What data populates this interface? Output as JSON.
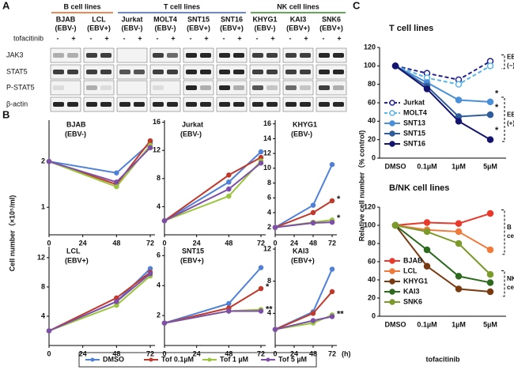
{
  "panel_labels": [
    "A",
    "B",
    "C"
  ],
  "blot": {
    "treatment_label": "tofacitinib",
    "treatment_marks": [
      "-",
      "+"
    ],
    "rows": [
      "JAK3",
      "STAT5",
      "P-STAT5",
      "β-actin"
    ],
    "groups": [
      {
        "name": "B cell lines",
        "color": "#e8601c",
        "lines": [
          {
            "name": "BJAB",
            "ebv": "(EBV-)"
          },
          {
            "name": "LCL",
            "ebv": "(EBV+)"
          }
        ]
      },
      {
        "name": "T cell lines",
        "color": "#3a5fcd",
        "lines": [
          {
            "name": "Jurkat",
            "ebv": "(EBV-)"
          },
          {
            "name": "MOLT4",
            "ebv": "(EBV-)"
          },
          {
            "name": "SNT15",
            "ebv": "(EBV+)"
          },
          {
            "name": "SNT16",
            "ebv": "(EBV+)"
          }
        ]
      },
      {
        "name": "NK cell lines",
        "color": "#2e8b22",
        "lines": [
          {
            "name": "KHYG1",
            "ebv": "(EBV-)"
          },
          {
            "name": "KAI3",
            "ebv": "(EBV+)"
          },
          {
            "name": "SNK6",
            "ebv": "(EBV+)"
          }
        ]
      }
    ]
  },
  "panel_b": {
    "y_label": "Cell number（×10⁵/ml)",
    "x_unit": "(h)"
  },
  "panel_c": {
    "y_label": "Relative cell number（% control)",
    "x_label": "tofacitinib"
  },
  "chart_data": [
    {
      "type": "line",
      "title": "BJAB",
      "subtitle": "(EBV-)",
      "title_color": "#e8601c",
      "x": [
        0,
        48,
        72
      ],
      "xlim": [
        0,
        72
      ],
      "xticks": [
        0,
        24,
        48,
        72
      ],
      "ylim": [
        0.4,
        2.9
      ],
      "yticks": [
        1,
        2
      ],
      "series": [
        {
          "name": "DMSO",
          "color": "#4f81d9",
          "values": [
            2,
            1.75,
            2.4
          ]
        },
        {
          "name": "Tof 0.1µM",
          "color": "#c0392b",
          "values": [
            2,
            1.5,
            2.45
          ]
        },
        {
          "name": "Tof 1 µM",
          "color": "#9bc53d",
          "values": [
            2,
            1.45,
            2.35
          ]
        },
        {
          "name": "Tof 5 µM",
          "color": "#7d4fa8",
          "values": [
            2,
            1.55,
            2.3
          ]
        }
      ]
    },
    {
      "type": "line",
      "title": "Jurkat",
      "subtitle": "(EBV-)",
      "title_color": "#3a5fcd",
      "x": [
        0,
        48,
        72
      ],
      "xlim": [
        0,
        72
      ],
      "xticks": [
        0,
        24,
        48,
        72
      ],
      "ylim": [
        0,
        16.3
      ],
      "yticks": [
        4,
        8,
        12,
        16
      ],
      "series": [
        {
          "color": "#4f81d9",
          "values": [
            2,
            7.5,
            11.8
          ]
        },
        {
          "color": "#c0392b",
          "values": [
            2,
            8.5,
            11
          ]
        },
        {
          "color": "#9bc53d",
          "values": [
            2,
            5.5,
            10.5
          ]
        },
        {
          "color": "#7d4fa8",
          "values": [
            2,
            6.5,
            10.2
          ]
        }
      ]
    },
    {
      "type": "line",
      "title": "KHYG1",
      "subtitle": "(EBV-)",
      "title_color": "#2e8b22",
      "x": [
        0,
        48,
        72
      ],
      "xlim": [
        0,
        72
      ],
      "xticks": [
        0,
        24,
        48,
        72
      ],
      "ylim": [
        1,
        16.5
      ],
      "yticks": [
        2,
        4,
        6,
        8,
        10,
        12,
        14,
        16
      ],
      "series": [
        {
          "color": "#4f81d9",
          "values": [
            2,
            5,
            10.5
          ]
        },
        {
          "color": "#c0392b",
          "values": [
            2,
            4,
            5.6
          ]
        },
        {
          "color": "#9bc53d",
          "values": [
            2,
            2.7,
            3
          ]
        },
        {
          "color": "#7d4fa8",
          "values": [
            2,
            2.6,
            2.7
          ]
        }
      ],
      "annotations": [
        {
          "text": "*",
          "x": 72,
          "y": 5.6
        },
        {
          "text": "*",
          "x": 72,
          "y": 3
        }
      ]
    },
    {
      "type": "line",
      "title": "LCL",
      "subtitle": "(EBV+)",
      "title_color": "#e8601c",
      "x": [
        0,
        48,
        72
      ],
      "xlim": [
        0,
        72
      ],
      "xticks": [
        0,
        24,
        48,
        72
      ],
      "ylim": [
        0,
        13.5
      ],
      "yticks": [
        4,
        8,
        12
      ],
      "series": [
        {
          "color": "#4f81d9",
          "values": [
            2,
            6,
            10.5
          ]
        },
        {
          "color": "#c0392b",
          "values": [
            2,
            6.5,
            10
          ]
        },
        {
          "color": "#9bc53d",
          "values": [
            2,
            5.5,
            9.5
          ]
        },
        {
          "color": "#7d4fa8",
          "values": [
            2,
            6,
            9.8
          ]
        }
      ]
    },
    {
      "type": "line",
      "title": "SNT15",
      "subtitle": "(EBV+)",
      "title_color": "#3a5fcd",
      "x": [
        0,
        48,
        72
      ],
      "xlim": [
        0,
        72
      ],
      "xticks": [
        0,
        24,
        48,
        72
      ],
      "ylim": [
        0,
        6.6
      ],
      "yticks": [
        2,
        4,
        6
      ],
      "series": [
        {
          "color": "#4f81d9",
          "values": [
            1.5,
            2.8,
            5.2
          ]
        },
        {
          "color": "#c0392b",
          "values": [
            1.5,
            2.5,
            3.8
          ]
        },
        {
          "color": "#9bc53d",
          "values": [
            1.5,
            2.3,
            2.4
          ]
        },
        {
          "color": "#7d4fa8",
          "values": [
            1.5,
            2.3,
            2.3
          ]
        }
      ],
      "annotations": [
        {
          "text": "*",
          "x": 72,
          "y": 3.8
        },
        {
          "text": "**",
          "x": 72,
          "y": 2.3
        }
      ]
    },
    {
      "type": "line",
      "title": "KAI3",
      "subtitle": "(EBV+)",
      "title_color": "#2e8b22",
      "x": [
        0,
        48,
        72
      ],
      "xlim": [
        0,
        72
      ],
      "xticks": [
        0,
        24,
        48,
        72
      ],
      "ylim": [
        0,
        12.3
      ],
      "yticks": [
        4,
        8,
        12
      ],
      "series": [
        {
          "color": "#4f81d9",
          "values": [
            2,
            4.2,
            9.5
          ]
        },
        {
          "color": "#c0392b",
          "values": [
            2,
            4,
            6.7
          ]
        },
        {
          "color": "#9bc53d",
          "values": [
            2,
            2.8,
            3.8
          ]
        },
        {
          "color": "#7d4fa8",
          "values": [
            2,
            3.1,
            3.6
          ]
        }
      ],
      "annotations": [
        {
          "text": "**",
          "x": 72,
          "y": 3.7
        }
      ]
    },
    {
      "type": "line",
      "title": "T cell lines",
      "categories": [
        "DMSO",
        "0.1µM",
        "1µM",
        "5µM"
      ],
      "ylim": [
        0,
        120
      ],
      "yticks": [
        0,
        20,
        40,
        60,
        80,
        100,
        120
      ],
      "series": [
        {
          "name": "Jurkat",
          "color": "#23238f",
          "dashed": true,
          "marker": "open",
          "values": [
            100,
            92,
            85,
            105
          ]
        },
        {
          "name": "MOLT4",
          "color": "#5ab4e6",
          "dashed": true,
          "marker": "open",
          "values": [
            100,
            87,
            80,
            100
          ]
        },
        {
          "name": "SNT13",
          "color": "#4a8fd9",
          "values": [
            100,
            82,
            63,
            61
          ]
        },
        {
          "name": "SNT15",
          "color": "#2f5d9a",
          "values": [
            100,
            78,
            45,
            47
          ]
        },
        {
          "name": "SNT16",
          "color": "#14146e",
          "values": [
            100,
            75,
            40,
            20
          ]
        }
      ],
      "annotations": [
        {
          "text": "*",
          "x": "5µM",
          "y": 68
        },
        {
          "text": "*",
          "x": "5µM",
          "y": 53
        },
        {
          "text": "*",
          "x": "5µM",
          "y": 28
        }
      ],
      "bracket_labels": [
        [
          "EBV",
          "(−)"
        ],
        [
          "EBV",
          "(+)"
        ]
      ]
    },
    {
      "type": "line",
      "title": "B/NK cell lines",
      "categories": [
        "DMSO",
        "0.1µM",
        "1µM",
        "5µM"
      ],
      "ylim": [
        0,
        120
      ],
      "yticks": [
        0,
        20,
        40,
        60,
        80,
        100,
        120
      ],
      "series": [
        {
          "name": "BJAB",
          "color": "#e8392a",
          "values": [
            100,
            103,
            102,
            113
          ]
        },
        {
          "name": "LCL",
          "color": "#f07a3a",
          "values": [
            100,
            95,
            93,
            73
          ]
        },
        {
          "name": "KHYG1",
          "color": "#7a3a10",
          "values": [
            100,
            55,
            30,
            27
          ]
        },
        {
          "name": "KAI3",
          "color": "#2d6a1e",
          "values": [
            100,
            73,
            44,
            37
          ]
        },
        {
          "name": "SNK6",
          "color": "#7a9a2a",
          "values": [
            100,
            93,
            80,
            46
          ]
        }
      ],
      "bracket_labels": [
        [
          "B",
          "cell"
        ],
        [
          "NK",
          "cell"
        ]
      ]
    }
  ]
}
